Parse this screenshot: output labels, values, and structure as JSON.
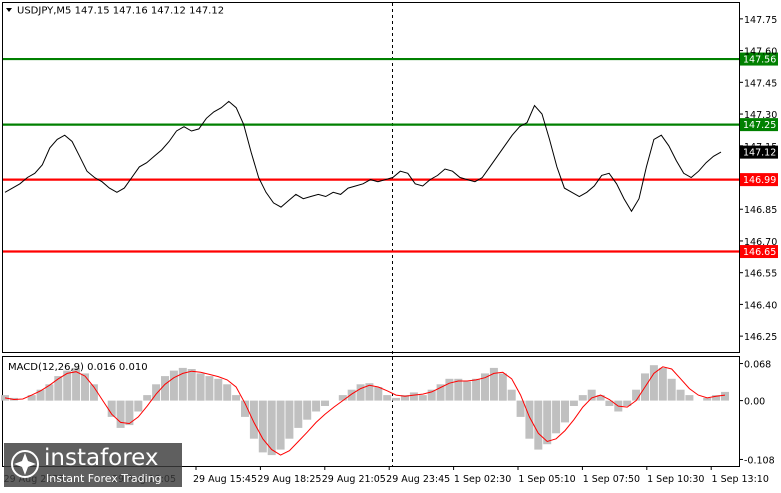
{
  "price_panel": {
    "header": "USDJPY,M5  147.15 147.16 147.12 147.12",
    "current_price": "147.12",
    "price_color": "#000000",
    "price_range": [
      146.175,
      147.825
    ],
    "y_axis_ticks": [
      "147.75",
      "147.60",
      "147.45",
      "147.30",
      "147.15",
      "146.85",
      "146.70",
      "146.55",
      "146.40",
      "146.25"
    ],
    "levels": [
      {
        "value": 147.56,
        "label": "147.56",
        "color": "#008000"
      },
      {
        "value": 147.25,
        "label": "147.25",
        "color": "#008000"
      },
      {
        "value": 146.99,
        "label": "146.99",
        "color": "#ff0000"
      },
      {
        "value": 146.65,
        "label": "146.65",
        "color": "#ff0000"
      }
    ]
  },
  "macd_panel": {
    "header": "MACD(12,26,9) 0.016 0.010",
    "value_range": [
      -0.12,
      0.08
    ],
    "y_axis_ticks": [
      {
        "value": 0.068,
        "label": "0.068"
      },
      {
        "value": 0.0,
        "label": "0.00"
      },
      {
        "value": -0.108,
        "label": "-0.108"
      }
    ],
    "histogram_color": "#c0c0c0",
    "signal_color": "#ff0000"
  },
  "time_axis": {
    "labels": [
      "29 Aug 15:45",
      "29 Aug 18:25",
      "29 Aug 21:05",
      "29 Aug 23:45",
      "1 Sep 02:30",
      "1 Sep 05:10",
      "1 Sep 07:50",
      "1 Sep 10:30",
      "1 Sep 13:10"
    ],
    "partial_labels": [
      "29 Aug 2025",
      "29 Aug 13:05"
    ]
  },
  "watermark": {
    "brand": "instaforex",
    "tagline": "Instant Forex Trading",
    "icon": "instaforex-logo-icon"
  },
  "chart_data": {
    "type": "line",
    "series": [
      {
        "values": [
          146.93,
          146.95,
          146.97,
          147.0,
          147.02,
          147.06,
          147.14,
          147.18,
          147.2,
          147.17,
          147.1,
          147.03,
          147.0,
          146.98,
          146.95,
          146.93,
          146.95,
          147.0,
          147.05,
          147.07,
          147.1,
          147.13,
          147.17,
          147.22,
          147.24,
          147.22,
          147.23,
          147.28,
          147.31,
          147.33,
          147.36,
          147.33,
          147.25,
          147.12,
          147.0,
          146.93,
          146.88,
          146.86,
          146.89,
          146.92,
          146.9,
          146.91,
          146.92,
          146.91,
          146.93,
          146.92,
          146.95,
          146.96,
          146.97,
          146.99,
          146.98,
          146.99,
          147.0,
          147.03,
          147.02,
          146.97,
          146.96,
          146.99,
          147.01,
          147.04,
          147.03,
          147.0,
          146.99,
          146.98,
          147.0,
          147.05,
          147.1,
          147.15,
          147.2,
          147.24,
          147.26,
          147.34,
          147.3,
          147.18,
          147.05,
          146.95,
          146.93,
          146.91,
          146.93,
          146.96,
          147.01,
          147.02,
          146.97,
          146.9,
          146.84,
          146.9,
          147.05,
          147.18,
          147.2,
          147.15,
          147.08,
          147.02,
          147.0,
          147.03,
          147.07,
          147.1,
          147.12
        ]
      }
    ]
  },
  "macd_data": {
    "histogram": [
      0.01,
      0.005,
      0.0,
      0.01,
      0.02,
      0.03,
      0.045,
      0.055,
      0.06,
      0.05,
      0.03,
      0.0,
      -0.03,
      -0.05,
      -0.045,
      -0.02,
      0.01,
      0.03,
      0.045,
      0.055,
      0.06,
      0.058,
      0.05,
      0.045,
      0.04,
      0.03,
      0.01,
      -0.03,
      -0.07,
      -0.095,
      -0.1,
      -0.09,
      -0.07,
      -0.05,
      -0.035,
      -0.02,
      -0.01,
      0.0,
      0.01,
      0.02,
      0.03,
      0.032,
      0.025,
      0.01,
      0.005,
      0.01,
      0.015,
      0.01,
      0.02,
      0.03,
      0.04,
      0.04,
      0.035,
      0.04,
      0.05,
      0.06,
      0.05,
      0.02,
      -0.03,
      -0.07,
      -0.09,
      -0.08,
      -0.06,
      -0.04,
      -0.01,
      0.01,
      0.02,
      0.01,
      -0.01,
      -0.02,
      -0.01,
      0.02,
      0.05,
      0.065,
      0.06,
      0.04,
      0.02,
      0.01,
      0.0,
      0.005,
      0.01,
      0.016
    ],
    "signal": [
      0.005,
      0.002,
      0.003,
      0.01,
      0.018,
      0.028,
      0.04,
      0.05,
      0.053,
      0.045,
      0.025,
      0.0,
      -0.025,
      -0.04,
      -0.042,
      -0.03,
      -0.01,
      0.012,
      0.03,
      0.042,
      0.05,
      0.054,
      0.052,
      0.048,
      0.044,
      0.038,
      0.025,
      -0.005,
      -0.04,
      -0.07,
      -0.09,
      -0.1,
      -0.092,
      -0.075,
      -0.058,
      -0.04,
      -0.025,
      -0.012,
      0.0,
      0.012,
      0.022,
      0.028,
      0.025,
      0.018,
      0.01,
      0.008,
      0.01,
      0.012,
      0.016,
      0.024,
      0.032,
      0.036,
      0.036,
      0.038,
      0.042,
      0.05,
      0.052,
      0.04,
      0.01,
      -0.03,
      -0.06,
      -0.075,
      -0.07,
      -0.055,
      -0.035,
      -0.012,
      0.005,
      0.01,
      0.002,
      -0.01,
      -0.012,
      0.0,
      0.025,
      0.05,
      0.062,
      0.058,
      0.04,
      0.022,
      0.01,
      0.005,
      0.008,
      0.01
    ]
  }
}
